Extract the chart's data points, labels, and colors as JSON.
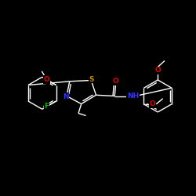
{
  "background_color": "#000000",
  "bond_color": "#ffffff",
  "atom_colors": {
    "S": "#cc8800",
    "N": "#3333ff",
    "O": "#dd0000",
    "F": "#00bb00",
    "C": "#ffffff"
  },
  "line_width": 1.0,
  "font_size": 6.5
}
